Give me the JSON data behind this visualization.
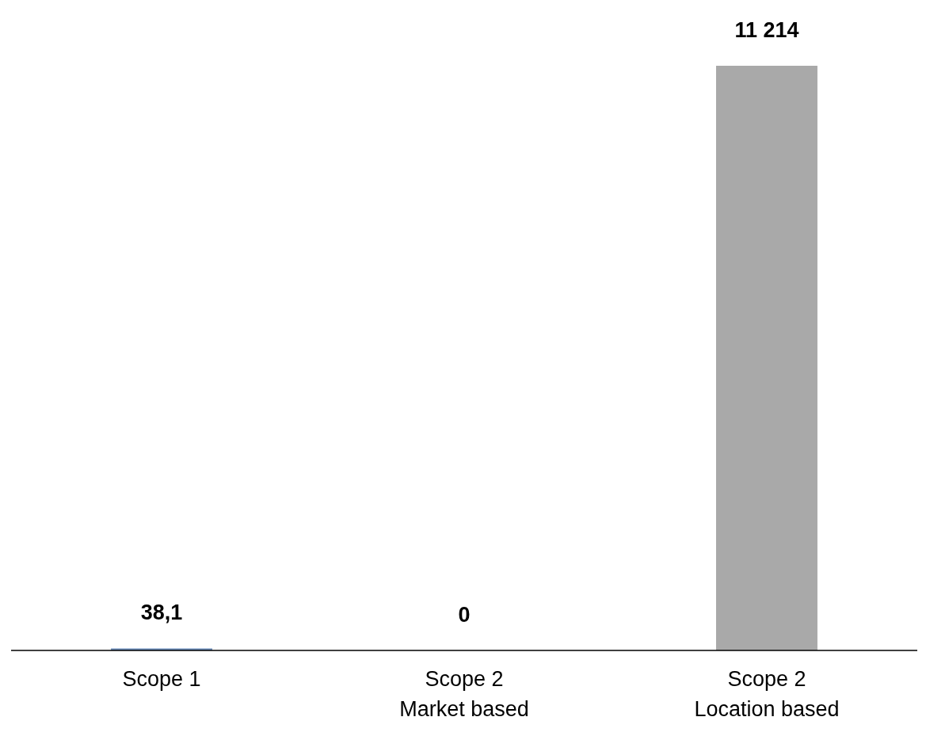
{
  "chart_data": {
    "type": "bar",
    "categories": [
      "Scope 1",
      "Scope 2\nMarket based",
      "Scope 2\nLocation based"
    ],
    "values": [
      38.1,
      0,
      11214
    ],
    "value_labels": [
      "38,1",
      "0",
      "11 214"
    ],
    "colors": [
      "#6d8ebb",
      "#a9a9a9",
      "#a9a9a9"
    ]
  }
}
